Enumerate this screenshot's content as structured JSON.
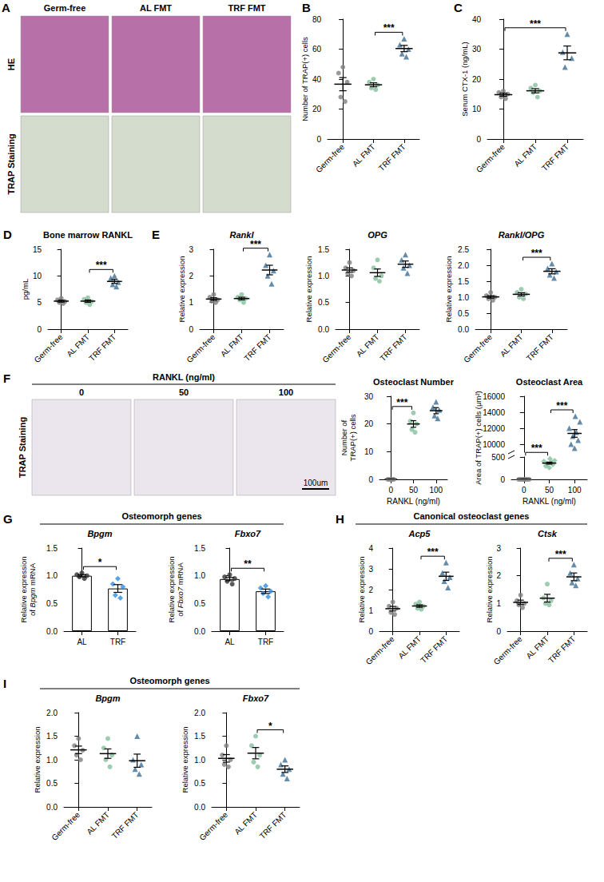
{
  "chart_data": [
    {
      "panel": "B",
      "type": "scatter",
      "ylabel": "Number of TRAP(+) cells",
      "ylim": [
        0,
        80
      ],
      "yticks": [
        0,
        20,
        40,
        60,
        80
      ],
      "grid": false,
      "groups": [
        {
          "name": "Germ-free",
          "color": "#7f7f7f",
          "marker": "circle",
          "values": [
            48,
            44,
            38,
            28,
            25
          ],
          "mean": 36.6,
          "sem": 4.4
        },
        {
          "name": "AL FMT",
          "color": "#86bf9c",
          "marker": "circle",
          "values": [
            40,
            38,
            36,
            34,
            33
          ],
          "mean": 36.2,
          "sem": 1.3
        },
        {
          "name": "TRF FMT",
          "color": "#3d6e94",
          "marker": "triangle",
          "values": [
            67,
            63,
            60,
            57,
            55
          ],
          "mean": 60.4,
          "sem": 2.1
        }
      ],
      "significance": [
        {
          "from": "AL FMT",
          "to": "TRF FMT",
          "label": "***"
        }
      ]
    },
    {
      "panel": "C",
      "type": "scatter",
      "ylabel": "Serum CTX-1 (ng/mL)",
      "ylim": [
        0,
        40
      ],
      "yticks": [
        0,
        10,
        20,
        30,
        40
      ],
      "grid": false,
      "groups": [
        {
          "name": "Germ-free",
          "color": "#7f7f7f",
          "marker": "circle",
          "values": [
            16,
            15.5,
            15,
            14,
            13.5
          ],
          "mean": 14.8,
          "sem": 0.5
        },
        {
          "name": "AL FMT",
          "color": "#86bf9c",
          "marker": "circle",
          "values": [
            18,
            17,
            16,
            15.5,
            14
          ],
          "mean": 16.1,
          "sem": 0.7
        },
        {
          "name": "TRF FMT",
          "color": "#3d6e94",
          "marker": "triangle",
          "values": [
            35,
            29,
            27,
            24
          ],
          "mean": 28.75,
          "sem": 2.3
        }
      ],
      "significance": [
        {
          "from": "Germ-free",
          "to": "TRF FMT",
          "label": "***"
        }
      ]
    },
    {
      "panel": "D",
      "type": "scatter",
      "title": "Bone marrow RANKL",
      "ylabel": "pg/mL",
      "ylim": [
        0,
        15
      ],
      "yticks": [
        0,
        5,
        10,
        15
      ],
      "grid": false,
      "groups": [
        {
          "name": "Germ-free",
          "color": "#7f7f7f",
          "marker": "circle",
          "values": [
            5.8,
            5.5,
            5.2,
            5.0,
            4.8
          ],
          "mean": 5.26,
          "sem": 0.18
        },
        {
          "name": "AL FMT",
          "color": "#86bf9c",
          "marker": "circle",
          "values": [
            5.9,
            5.6,
            5.2,
            5.0,
            4.6
          ],
          "mean": 5.26,
          "sem": 0.22
        },
        {
          "name": "TRF FMT",
          "color": "#3d6e94",
          "marker": "triangle",
          "values": [
            10,
            9.6,
            8.8,
            8.4,
            8.0
          ],
          "mean": 8.96,
          "sem": 0.37
        }
      ],
      "significance": [
        {
          "from": "AL FMT",
          "to": "TRF FMT",
          "label": "***"
        }
      ]
    },
    {
      "panel": "E",
      "type": "scatter",
      "title": "Rankl",
      "ylabel": "Relative expression",
      "ylim": [
        0,
        3
      ],
      "yticks": [
        0,
        1,
        2,
        3
      ],
      "grid": false,
      "groups": [
        {
          "name": "Germ-free",
          "color": "#7f7f7f",
          "marker": "circle",
          "values": [
            1.3,
            1.2,
            1.1,
            1.05,
            1.0
          ],
          "mean": 1.13,
          "sem": 0.05
        },
        {
          "name": "AL FMT",
          "color": "#86bf9c",
          "marker": "circle",
          "values": [
            1.3,
            1.2,
            1.15,
            1.1,
            1.0
          ],
          "mean": 1.15,
          "sem": 0.05
        },
        {
          "name": "TRF FMT",
          "color": "#3d6e94",
          "marker": "triangle",
          "values": [
            2.8,
            2.4,
            2.2,
            2.0,
            1.7
          ],
          "mean": 2.22,
          "sem": 0.18
        }
      ],
      "significance": [
        {
          "from": "AL FMT",
          "to": "TRF FMT",
          "label": "***"
        }
      ]
    },
    {
      "panel": "E",
      "type": "scatter",
      "title": "OPG",
      "ylabel": "Relative expression",
      "ylim": [
        0,
        1.5
      ],
      "yticks": [
        {
          "value": 0,
          "label": "0.0"
        },
        0.5,
        {
          "value": 1,
          "label": "1.0"
        },
        1.5
      ],
      "grid": false,
      "groups": [
        {
          "name": "Germ-free",
          "color": "#7f7f7f",
          "marker": "circle",
          "values": [
            1.25,
            1.15,
            1.1,
            1.05,
            1.0
          ],
          "mean": 1.11,
          "sem": 0.04
        },
        {
          "name": "AL FMT",
          "color": "#86bf9c",
          "marker": "circle",
          "values": [
            1.3,
            1.15,
            1.0,
            0.95,
            0.9
          ],
          "mean": 1.06,
          "sem": 0.07
        },
        {
          "name": "TRF FMT",
          "color": "#3d6e94",
          "marker": "triangle",
          "values": [
            1.4,
            1.3,
            1.2,
            1.15,
            1.05
          ],
          "mean": 1.22,
          "sem": 0.06
        }
      ]
    },
    {
      "panel": "E",
      "type": "scatter",
      "title": "Rankl/OPG",
      "ylabel": "Relative expression",
      "ylim": [
        0,
        2.5
      ],
      "yticks": [
        {
          "value": 0,
          "label": "0.0"
        },
        0.5,
        {
          "value": 1,
          "label": "1.0"
        },
        1.5,
        {
          "value": 2,
          "label": "2.0"
        },
        2.5
      ],
      "grid": false,
      "groups": [
        {
          "name": "Germ-free",
          "color": "#7f7f7f",
          "marker": "circle",
          "values": [
            1.15,
            1.05,
            1.0,
            0.95,
            0.9
          ],
          "mean": 1.01,
          "sem": 0.04
        },
        {
          "name": "AL FMT",
          "color": "#86bf9c",
          "marker": "circle",
          "values": [
            1.25,
            1.15,
            1.1,
            1.0,
            0.95
          ],
          "mean": 1.09,
          "sem": 0.05
        },
        {
          "name": "TRF FMT",
          "color": "#3d6e94",
          "marker": "triangle",
          "values": [
            2.05,
            1.9,
            1.8,
            1.7,
            1.6
          ],
          "mean": 1.81,
          "sem": 0.08
        }
      ],
      "significance": [
        {
          "from": "AL FMT",
          "to": "TRF FMT",
          "label": "***"
        }
      ]
    },
    {
      "panel": "F",
      "type": "scatter",
      "title": "Osteoclast Number",
      "ylabel": "Number of TRAP(+) cells",
      "xlabel": "RANKL (ng/ml)",
      "ylim": [
        0,
        30
      ],
      "yticks": [
        0,
        10,
        20,
        30
      ],
      "grid": false,
      "groups": [
        {
          "name": "0",
          "color": "#7f7f7f",
          "marker": "circle",
          "values": [
            0,
            0,
            0,
            0,
            0
          ],
          "mean": 0,
          "sem": 0
        },
        {
          "name": "50",
          "color": "#86bf9c",
          "marker": "circle",
          "values": [
            24,
            21,
            20,
            18,
            17
          ],
          "mean": 20,
          "sem": 1.2
        },
        {
          "name": "100",
          "color": "#3d6e94",
          "marker": "triangle",
          "values": [
            28,
            26,
            25,
            23,
            22
          ],
          "mean": 24.8,
          "sem": 1.1
        }
      ],
      "significance": [
        {
          "from": "0",
          "to": "50",
          "label": "***"
        }
      ]
    },
    {
      "panel": "F",
      "type": "scatter",
      "title": "Osteoclast Area",
      "ylabel": "Area of TRAP(+) cells (μm²)",
      "xlabel": "RANKL (ng/ml)",
      "grid": false,
      "segments": [
        {
          "ylim": [
            0,
            500
          ],
          "yticks": [
            0,
            500
          ]
        },
        {
          "ylim": [
            9000,
            16000
          ],
          "yticks": [
            10000,
            12000,
            14000,
            16000
          ]
        }
      ],
      "groups": [
        {
          "name": "0",
          "color": "#7f7f7f",
          "marker": "circle",
          "values": [
            0,
            0,
            0,
            0,
            0,
            0,
            0,
            0
          ],
          "mean": 0,
          "sem": 0
        },
        {
          "name": "50",
          "color": "#86bf9c",
          "marker": "diamond",
          "values": [
            260,
            300,
            330,
            350,
            380,
            400,
            420,
            460
          ],
          "mean": 363,
          "sem": 22
        },
        {
          "name": "100",
          "color": "#3d6e94",
          "marker": "triangle",
          "values": [
            9500,
            10000,
            10500,
            11000,
            11500,
            12000,
            12800,
            13500
          ],
          "mean": 11350,
          "sem": 480
        }
      ],
      "significance": [
        {
          "from": "0",
          "to": "50",
          "label": "***"
        },
        {
          "from": "50",
          "to": "100",
          "label": "***"
        }
      ]
    },
    {
      "panel": "G",
      "type": "bar",
      "title": "Bpgm",
      "ylabel": "Relative expression of Bpgm mRNA",
      "ylim": [
        0,
        1.5
      ],
      "yticks": [
        {
          "value": 0,
          "label": "0.0"
        },
        0.5,
        {
          "value": 1,
          "label": "1.0"
        },
        1.5
      ],
      "grid": false,
      "groups": [
        {
          "name": "AL",
          "color": "#333333",
          "marker": "circle",
          "values": [
            1.05,
            1.02,
            1.0,
            0.98,
            0.95
          ],
          "mean": 1.0,
          "sem": 0.02
        },
        {
          "name": "TRF",
          "color": "#2e8fe6",
          "marker": "diamond",
          "values": [
            0.95,
            0.85,
            0.8,
            0.65,
            0.6
          ],
          "mean": 0.77,
          "sem": 0.07
        }
      ],
      "significance": [
        {
          "from": "AL",
          "to": "TRF",
          "label": "*"
        }
      ]
    },
    {
      "panel": "G",
      "type": "bar",
      "title": "Fbxo7",
      "ylabel": "Relative expression of Fbxo7 mRNA",
      "ylim": [
        0,
        1.5
      ],
      "yticks": [
        {
          "value": 0,
          "label": "0.0"
        },
        0.5,
        {
          "value": 1,
          "label": "1.0"
        },
        1.5
      ],
      "grid": false,
      "groups": [
        {
          "name": "AL",
          "color": "#333333",
          "marker": "circle",
          "values": [
            1.02,
            0.98,
            0.95,
            0.9,
            0.85
          ],
          "mean": 0.94,
          "sem": 0.03
        },
        {
          "name": "TRF",
          "color": "#2e8fe6",
          "marker": "diamond",
          "values": [
            0.82,
            0.78,
            0.72,
            0.68,
            0.62
          ],
          "mean": 0.72,
          "sem": 0.04
        }
      ],
      "significance": [
        {
          "from": "AL",
          "to": "TRF",
          "label": "**"
        }
      ]
    },
    {
      "panel": "H",
      "type": "scatter",
      "title": "Acp5",
      "ylabel": "Relative expression",
      "ylim": [
        0,
        4
      ],
      "yticks": [
        0,
        1,
        2,
        3,
        4
      ],
      "grid": false,
      "groups": [
        {
          "name": "Germ-free",
          "color": "#7f7f7f",
          "marker": "circle",
          "values": [
            1.4,
            1.2,
            1.1,
            0.9,
            0.8
          ],
          "mean": 1.08,
          "sem": 0.11
        },
        {
          "name": "AL FMT",
          "color": "#86bf9c",
          "marker": "circle",
          "values": [
            1.4,
            1.3,
            1.2,
            1.1,
            1.05
          ],
          "mean": 1.21,
          "sem": 0.06
        },
        {
          "name": "TRF FMT",
          "color": "#3d6e94",
          "marker": "triangle",
          "values": [
            3.3,
            2.8,
            2.6,
            2.4,
            2.1
          ],
          "mean": 2.64,
          "sem": 0.2
        }
      ],
      "significance": [
        {
          "from": "AL FMT",
          "to": "TRF FMT",
          "label": "***"
        }
      ]
    },
    {
      "panel": "H",
      "type": "scatter",
      "title": "Ctsk",
      "ylabel": "Relative expression",
      "ylim": [
        0,
        3
      ],
      "yticks": [
        0,
        1,
        2,
        3
      ],
      "grid": false,
      "groups": [
        {
          "name": "Germ-free",
          "color": "#7f7f7f",
          "marker": "circle",
          "values": [
            1.3,
            1.1,
            1.0,
            0.95,
            0.85
          ],
          "mean": 1.04,
          "sem": 0.08
        },
        {
          "name": "AL FMT",
          "color": "#86bf9c",
          "marker": "circle",
          "values": [
            1.7,
            1.2,
            1.1,
            1.0,
            0.95
          ],
          "mean": 1.19,
          "sem": 0.14
        },
        {
          "name": "TRF FMT",
          "color": "#3d6e94",
          "marker": "triangle",
          "values": [
            2.4,
            2.1,
            1.9,
            1.75,
            1.65
          ],
          "mean": 1.96,
          "sem": 0.14
        }
      ],
      "significance": [
        {
          "from": "AL FMT",
          "to": "TRF FMT",
          "label": "***"
        }
      ]
    },
    {
      "panel": "I",
      "type": "scatter",
      "title": "Bpgm",
      "ylabel": "Relative expression",
      "ylim": [
        0,
        2
      ],
      "yticks": [
        {
          "value": 0,
          "label": "0.0"
        },
        0.5,
        {
          "value": 1,
          "label": "1.0"
        },
        1.5,
        {
          "value": 2,
          "label": "2.0"
        }
      ],
      "grid": false,
      "groups": [
        {
          "name": "Germ-free",
          "color": "#7f7f7f",
          "marker": "circle",
          "values": [
            1.45,
            1.3,
            1.2,
            1.1,
            1.0
          ],
          "mean": 1.21,
          "sem": 0.08
        },
        {
          "name": "AL FMT",
          "color": "#86bf9c",
          "marker": "circle",
          "values": [
            1.45,
            1.25,
            1.1,
            1.0,
            0.85
          ],
          "mean": 1.13,
          "sem": 0.1
        },
        {
          "name": "TRF FMT",
          "color": "#3d6e94",
          "marker": "triangle",
          "values": [
            1.5,
            1.0,
            0.9,
            0.8,
            0.7
          ],
          "mean": 0.98,
          "sem": 0.14
        }
      ]
    },
    {
      "panel": "I",
      "type": "scatter",
      "title": "Fbxo7",
      "ylabel": "Relative expression",
      "ylim": [
        0,
        2
      ],
      "yticks": [
        {
          "value": 0,
          "label": "0.0"
        },
        0.5,
        {
          "value": 1,
          "label": "1.0"
        },
        1.5,
        {
          "value": 2,
          "label": "2.0"
        }
      ],
      "grid": false,
      "groups": [
        {
          "name": "Germ-free",
          "color": "#7f7f7f",
          "marker": "circle",
          "values": [
            1.3,
            1.1,
            1.0,
            0.9,
            0.85
          ],
          "mean": 1.03,
          "sem": 0.08
        },
        {
          "name": "AL FMT",
          "color": "#86bf9c",
          "marker": "circle",
          "values": [
            1.5,
            1.3,
            1.1,
            0.95,
            0.85
          ],
          "mean": 1.14,
          "sem": 0.12
        },
        {
          "name": "TRF FMT",
          "color": "#3d6e94",
          "marker": "triangle",
          "values": [
            1.0,
            0.9,
            0.8,
            0.7,
            0.6
          ],
          "mean": 0.8,
          "sem": 0.07
        }
      ],
      "significance": [
        {
          "from": "AL FMT",
          "to": "TRF FMT",
          "label": "*"
        }
      ]
    }
  ],
  "group_titles": [
    {
      "panel": "G",
      "text": "Osteomorph genes"
    },
    {
      "panel": "H",
      "text": "Canonical osteoclast genes"
    },
    {
      "panel": "I",
      "text": "Osteomorph genes"
    }
  ],
  "images": [
    {
      "panel": "A",
      "columns": [
        "Germ-free",
        "AL FMT",
        "TRF FMT"
      ],
      "rows": [
        "HE",
        "TRAP Staining"
      ]
    },
    {
      "panel": "F",
      "heading": "RANKL (ng/ml)",
      "columns": [
        "0",
        "50",
        "100"
      ],
      "rows": [
        "TRAP Staining"
      ],
      "scale_bar": "100um"
    }
  ]
}
